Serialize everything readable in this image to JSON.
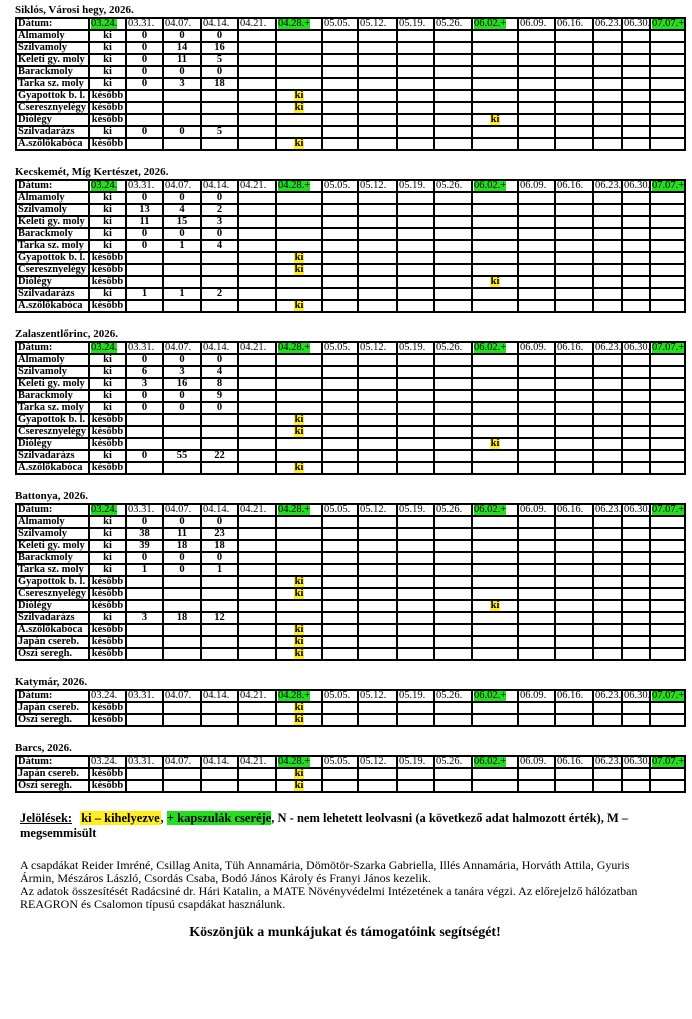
{
  "dates": [
    "03.24.",
    "03.31.",
    "04.07.",
    "04.14.",
    "04.21.",
    "04.28.+",
    "05.05.",
    "05.12.",
    "05.19.",
    "05.26.",
    "06.02.+",
    "06.09.",
    "06.16.",
    "06.23.",
    "06.30.",
    "07.07.+"
  ],
  "date_label": "Dátum:",
  "colors": {
    "green": "#22e01e",
    "yellow": "#ffee20"
  },
  "tables": [
    {
      "title": "Siklós, Városi hegy, 2026.",
      "green_headers": [
        "03.24.",
        "04.28.+",
        "06.02.+",
        "07.07.+"
      ],
      "rows": [
        {
          "label": "Almamoly",
          "cells": [
            "ki",
            "0",
            "0",
            "0",
            "",
            "",
            "",
            "",
            "",
            "",
            "",
            "",
            "",
            "",
            "",
            ""
          ]
        },
        {
          "label": "Szilvamoly",
          "cells": [
            "ki",
            "0",
            "14",
            "16",
            "",
            "",
            "",
            "",
            "",
            "",
            "",
            "",
            "",
            "",
            "",
            ""
          ]
        },
        {
          "label": "Keleti gy. moly",
          "cells": [
            "ki",
            "0",
            "11",
            "5",
            "",
            "",
            "",
            "",
            "",
            "",
            "",
            "",
            "",
            "",
            "",
            ""
          ]
        },
        {
          "label": "Barackmoly",
          "cells": [
            "ki",
            "0",
            "0",
            "0",
            "",
            "",
            "",
            "",
            "",
            "",
            "",
            "",
            "",
            "",
            "",
            ""
          ]
        },
        {
          "label": "Tarka sz. moly",
          "cells": [
            "ki",
            "0",
            "3",
            "18",
            "",
            "",
            "",
            "",
            "",
            "",
            "",
            "",
            "",
            "",
            "",
            ""
          ]
        },
        {
          "label": "Gyapottok b. l.",
          "cells": [
            "később",
            "",
            "",
            "",
            "",
            "ki",
            "",
            "",
            "",
            "",
            "",
            "",
            "",
            "",
            "",
            ""
          ]
        },
        {
          "label": "Cseresznyelégy",
          "cells": [
            "később",
            "",
            "",
            "",
            "",
            "ki",
            "",
            "",
            "",
            "",
            "",
            "",
            "",
            "",
            "",
            ""
          ]
        },
        {
          "label": "Diólégy",
          "cells": [
            "később",
            "",
            "",
            "",
            "",
            "",
            "",
            "",
            "",
            "",
            "ki",
            "",
            "",
            "",
            "",
            ""
          ]
        },
        {
          "label": "Szilvadarázs",
          "cells": [
            "ki",
            "0",
            "0",
            "5",
            "",
            "",
            "",
            "",
            "",
            "",
            "",
            "",
            "",
            "",
            "",
            ""
          ]
        },
        {
          "label": "A.szőlőkabóca",
          "cells": [
            "később",
            "",
            "",
            "",
            "",
            "ki",
            "",
            "",
            "",
            "",
            "",
            "",
            "",
            "",
            "",
            ""
          ]
        }
      ]
    },
    {
      "title": "Kecskemét, Míg Kertészet, 2026.",
      "green_headers": [
        "03.24.",
        "04.28.+",
        "06.02.+",
        "07.07.+"
      ],
      "rows": [
        {
          "label": "Almamoly",
          "cells": [
            "ki",
            "0",
            "0",
            "0",
            "",
            "",
            "",
            "",
            "",
            "",
            "",
            "",
            "",
            "",
            "",
            ""
          ]
        },
        {
          "label": "Szilvamoly",
          "cells": [
            "ki",
            "13",
            "4",
            "2",
            "",
            "",
            "",
            "",
            "",
            "",
            "",
            "",
            "",
            "",
            "",
            ""
          ]
        },
        {
          "label": "Keleti gy. moly",
          "cells": [
            "ki",
            "11",
            "15",
            "3",
            "",
            "",
            "",
            "",
            "",
            "",
            "",
            "",
            "",
            "",
            "",
            ""
          ]
        },
        {
          "label": "Barackmoly",
          "cells": [
            "ki",
            "0",
            "0",
            "0",
            "",
            "",
            "",
            "",
            "",
            "",
            "",
            "",
            "",
            "",
            "",
            ""
          ]
        },
        {
          "label": "Tarka sz. moly",
          "cells": [
            "ki",
            "0",
            "1",
            "4",
            "",
            "",
            "",
            "",
            "",
            "",
            "",
            "",
            "",
            "",
            "",
            ""
          ]
        },
        {
          "label": "Gyapottok b. l.",
          "cells": [
            "később",
            "",
            "",
            "",
            "",
            "ki",
            "",
            "",
            "",
            "",
            "",
            "",
            "",
            "",
            "",
            ""
          ]
        },
        {
          "label": "Cseresznyelégy",
          "cells": [
            "később",
            "",
            "",
            "",
            "",
            "ki",
            "",
            "",
            "",
            "",
            "",
            "",
            "",
            "",
            "",
            ""
          ]
        },
        {
          "label": "Diólégy",
          "cells": [
            "később",
            "",
            "",
            "",
            "",
            "",
            "",
            "",
            "",
            "",
            "ki",
            "",
            "",
            "",
            "",
            ""
          ]
        },
        {
          "label": "Szilvadarázs",
          "cells": [
            "ki",
            "1",
            "1",
            "2",
            "",
            "",
            "",
            "",
            "",
            "",
            "",
            "",
            "",
            "",
            "",
            ""
          ]
        },
        {
          "label": "A.szőlőkabóca",
          "cells": [
            "később",
            "",
            "",
            "",
            "",
            "ki",
            "",
            "",
            "",
            "",
            "",
            "",
            "",
            "",
            "",
            ""
          ]
        }
      ]
    },
    {
      "title": "Zalaszentlőrinc, 2026.",
      "green_headers": [
        "03.24.",
        "04.28.+",
        "06.02.+",
        "07.07.+"
      ],
      "rows": [
        {
          "label": "Almamoly",
          "cells": [
            "ki",
            "0",
            "0",
            "0",
            "",
            "",
            "",
            "",
            "",
            "",
            "",
            "",
            "",
            "",
            "",
            ""
          ]
        },
        {
          "label": "Szilvamoly",
          "cells": [
            "ki",
            "6",
            "3",
            "4",
            "",
            "",
            "",
            "",
            "",
            "",
            "",
            "",
            "",
            "",
            "",
            ""
          ]
        },
        {
          "label": "Keleti gy. moly",
          "cells": [
            "ki",
            "3",
            "16",
            "8",
            "",
            "",
            "",
            "",
            "",
            "",
            "",
            "",
            "",
            "",
            "",
            ""
          ]
        },
        {
          "label": "Barackmoly",
          "cells": [
            "ki",
            "0",
            "0",
            "9",
            "",
            "",
            "",
            "",
            "",
            "",
            "",
            "",
            "",
            "",
            "",
            ""
          ]
        },
        {
          "label": "Tarka sz. moly",
          "cells": [
            "ki",
            "0",
            "0",
            "0",
            "",
            "",
            "",
            "",
            "",
            "",
            "",
            "",
            "",
            "",
            "",
            ""
          ]
        },
        {
          "label": "Gyapottok b. l.",
          "cells": [
            "később",
            "",
            "",
            "",
            "",
            "ki",
            "",
            "",
            "",
            "",
            "",
            "",
            "",
            "",
            "",
            ""
          ]
        },
        {
          "label": "Cseresznyelégy",
          "cells": [
            "később",
            "",
            "",
            "",
            "",
            "ki",
            "",
            "",
            "",
            "",
            "",
            "",
            "",
            "",
            "",
            ""
          ]
        },
        {
          "label": "Diólégy",
          "cells": [
            "később",
            "",
            "",
            "",
            "",
            "",
            "",
            "",
            "",
            "",
            "ki",
            "",
            "",
            "",
            "",
            ""
          ]
        },
        {
          "label": "Szilvadarázs",
          "cells": [
            "ki",
            "0",
            "55",
            "22",
            "",
            "",
            "",
            "",
            "",
            "",
            "",
            "",
            "",
            "",
            "",
            ""
          ]
        },
        {
          "label": "A.szőlőkabóca",
          "cells": [
            "később",
            "",
            "",
            "",
            "",
            "ki",
            "",
            "",
            "",
            "",
            "",
            "",
            "",
            "",
            "",
            ""
          ]
        }
      ]
    },
    {
      "title": "Battonya, 2026.",
      "green_headers": [
        "03.24.",
        "04.28.+",
        "06.02.+",
        "07.07.+"
      ],
      "rows": [
        {
          "label": "Almamoly",
          "cells": [
            "ki",
            "0",
            "0",
            "0",
            "",
            "",
            "",
            "",
            "",
            "",
            "",
            "",
            "",
            "",
            "",
            ""
          ]
        },
        {
          "label": "Szilvamoly",
          "cells": [
            "ki",
            "38",
            "11",
            "23",
            "",
            "",
            "",
            "",
            "",
            "",
            "",
            "",
            "",
            "",
            "",
            ""
          ]
        },
        {
          "label": "Keleti gy. moly",
          "cells": [
            "ki",
            "39",
            "18",
            "18",
            "",
            "",
            "",
            "",
            "",
            "",
            "",
            "",
            "",
            "",
            "",
            ""
          ]
        },
        {
          "label": "Barackmoly",
          "cells": [
            "ki",
            "0",
            "0",
            "0",
            "",
            "",
            "",
            "",
            "",
            "",
            "",
            "",
            "",
            "",
            "",
            ""
          ]
        },
        {
          "label": "Tarka sz. moly",
          "cells": [
            "ki",
            "1",
            "0",
            "1",
            "",
            "",
            "",
            "",
            "",
            "",
            "",
            "",
            "",
            "",
            "",
            ""
          ]
        },
        {
          "label": "Gyapottok b. l.",
          "cells": [
            "később",
            "",
            "",
            "",
            "",
            "ki",
            "",
            "",
            "",
            "",
            "",
            "",
            "",
            "",
            "",
            ""
          ]
        },
        {
          "label": "Cseresznyelégy",
          "cells": [
            "később",
            "",
            "",
            "",
            "",
            "ki",
            "",
            "",
            "",
            "",
            "",
            "",
            "",
            "",
            "",
            ""
          ]
        },
        {
          "label": "Diólégy",
          "cells": [
            "később",
            "",
            "",
            "",
            "",
            "",
            "",
            "",
            "",
            "",
            "ki",
            "",
            "",
            "",
            "",
            ""
          ]
        },
        {
          "label": "Szilvadarázs",
          "cells": [
            "ki",
            "3",
            "18",
            "12",
            "",
            "",
            "",
            "",
            "",
            "",
            "",
            "",
            "",
            "",
            "",
            ""
          ]
        },
        {
          "label": "A.szőlőkabóca",
          "cells": [
            "később",
            "",
            "",
            "",
            "",
            "ki",
            "",
            "",
            "",
            "",
            "",
            "",
            "",
            "",
            "",
            ""
          ]
        },
        {
          "label": "Japán csereb.",
          "cells": [
            "később",
            "",
            "",
            "",
            "",
            "ki",
            "",
            "",
            "",
            "",
            "",
            "",
            "",
            "",
            "",
            ""
          ]
        },
        {
          "label": "Őszi seregh.",
          "cells": [
            "később",
            "",
            "",
            "",
            "",
            "ki",
            "",
            "",
            "",
            "",
            "",
            "",
            "",
            "",
            "",
            ""
          ]
        }
      ]
    },
    {
      "title": "Katymár, 2026.",
      "green_headers": [
        "04.28.+",
        "06.02.+",
        "07.07.+"
      ],
      "rows": [
        {
          "label": "Japán csereb.",
          "cells": [
            "később",
            "",
            "",
            "",
            "",
            "ki",
            "",
            "",
            "",
            "",
            "",
            "",
            "",
            "",
            "",
            ""
          ]
        },
        {
          "label": "Őszi seregh.",
          "cells": [
            "később",
            "",
            "",
            "",
            "",
            "ki",
            "",
            "",
            "",
            "",
            "",
            "",
            "",
            "",
            "",
            ""
          ]
        }
      ]
    },
    {
      "title": "Barcs, 2026.",
      "green_headers": [
        "04.28.+",
        "06.02.+",
        "07.07.+"
      ],
      "rows": [
        {
          "label": "Japán csereb.",
          "cells": [
            "később",
            "",
            "",
            "",
            "",
            "ki",
            "",
            "",
            "",
            "",
            "",
            "",
            "",
            "",
            "",
            ""
          ]
        },
        {
          "label": "Őszi seregh.",
          "cells": [
            "később",
            "",
            "",
            "",
            "",
            "ki",
            "",
            "",
            "",
            "",
            "",
            "",
            "",
            "",
            "",
            ""
          ]
        }
      ]
    }
  ],
  "legend": {
    "title": "Jelölések:",
    "ki": "ki – kihelyezve",
    "sep": ",",
    "plus": "+ kapszulák cseréje",
    "rest": ", N - nem lehetett leolvasni (a következő adat halmozott érték), M – megsemmisült"
  },
  "notes": [
    "A csapdákat Reider Imréné, Csillag Anita, Tüh Annamária, Dömötör-Szarka Gabriella, Illés Annamária, Horváth Attila, Gyuris Ármin, Mészáros László, Csordás Csaba, Bodó János Károly és Franyi János kezelik.",
    "Az adatok összesítését Radácsiné dr. Hári Katalin, a MATE Növényvédelmi Intézetének a tanára végzi. Az előrejelző hálózatban REAGRON és Csalomon típusú csapdákat használunk."
  ],
  "thanks": "Köszönjük a munkájukat és támogatóink segítségét!"
}
